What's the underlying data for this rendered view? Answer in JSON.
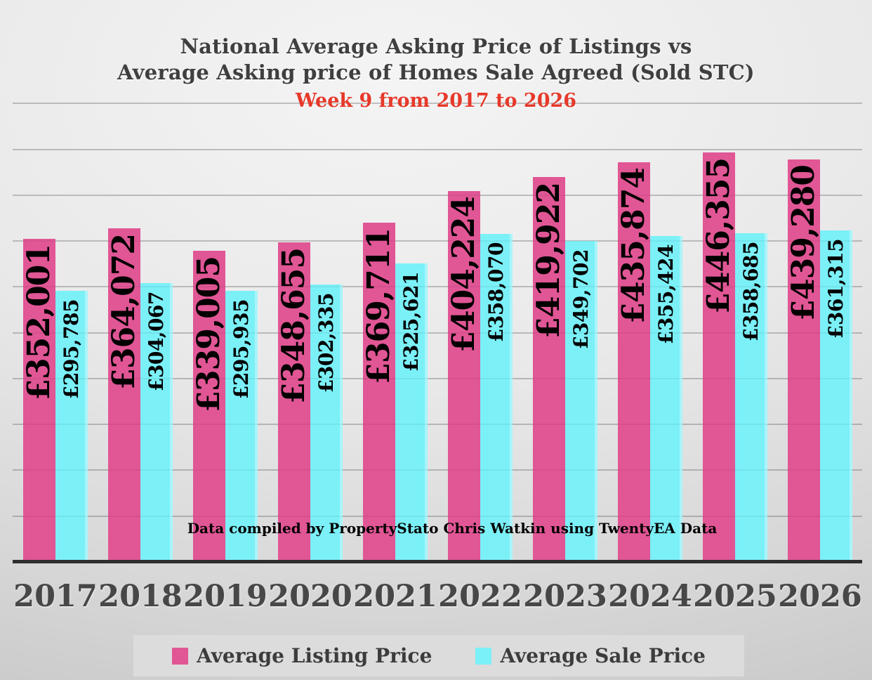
{
  "title": {
    "line1": "National Average Asking Price of Listings vs",
    "line2": "Average Asking price of Homes Sale Agreed (Sold STC)",
    "subtitle": "Week 9 from 2017 to 2026",
    "title_color": "#3f3f3f",
    "subtitle_color": "#e6392b"
  },
  "caption": "Data compiled by PropertyStato Chris Watkin using TwentyEA Data",
  "legend": {
    "items": [
      {
        "label": "Average Listing Price",
        "color": "#e15695"
      },
      {
        "label": "Average Sale Price",
        "color": "#7bf0f7"
      }
    ]
  },
  "chart_data": {
    "type": "bar",
    "title": "National Average Asking Price of Listings vs Average Asking price of Homes Sale Agreed (Sold STC)",
    "subtitle": "Week 9 from 2017 to 2026",
    "categories": [
      "2017",
      "2018",
      "2019",
      "2020",
      "2021",
      "2022",
      "2023",
      "2024",
      "2025",
      "2026"
    ],
    "series": [
      {
        "name": "Average Listing Price",
        "color": "#e15695",
        "values": [
          352001,
          364072,
          339005,
          348655,
          369711,
          404224,
          419922,
          435874,
          446355,
          439280
        ]
      },
      {
        "name": "Average Sale Price",
        "color": "#7bf0f7",
        "values": [
          295785,
          304067,
          295935,
          302335,
          325621,
          358070,
          349702,
          355424,
          358685,
          361315
        ]
      }
    ],
    "currency": "£",
    "ylim": [
      0,
      600000
    ],
    "gridline_step": 50000,
    "grid": true,
    "y_axis_labels_visible": false,
    "value_labels": "rotated 90deg on each bar",
    "legend_position": "bottom",
    "axis_color": "#2e2e2e"
  }
}
